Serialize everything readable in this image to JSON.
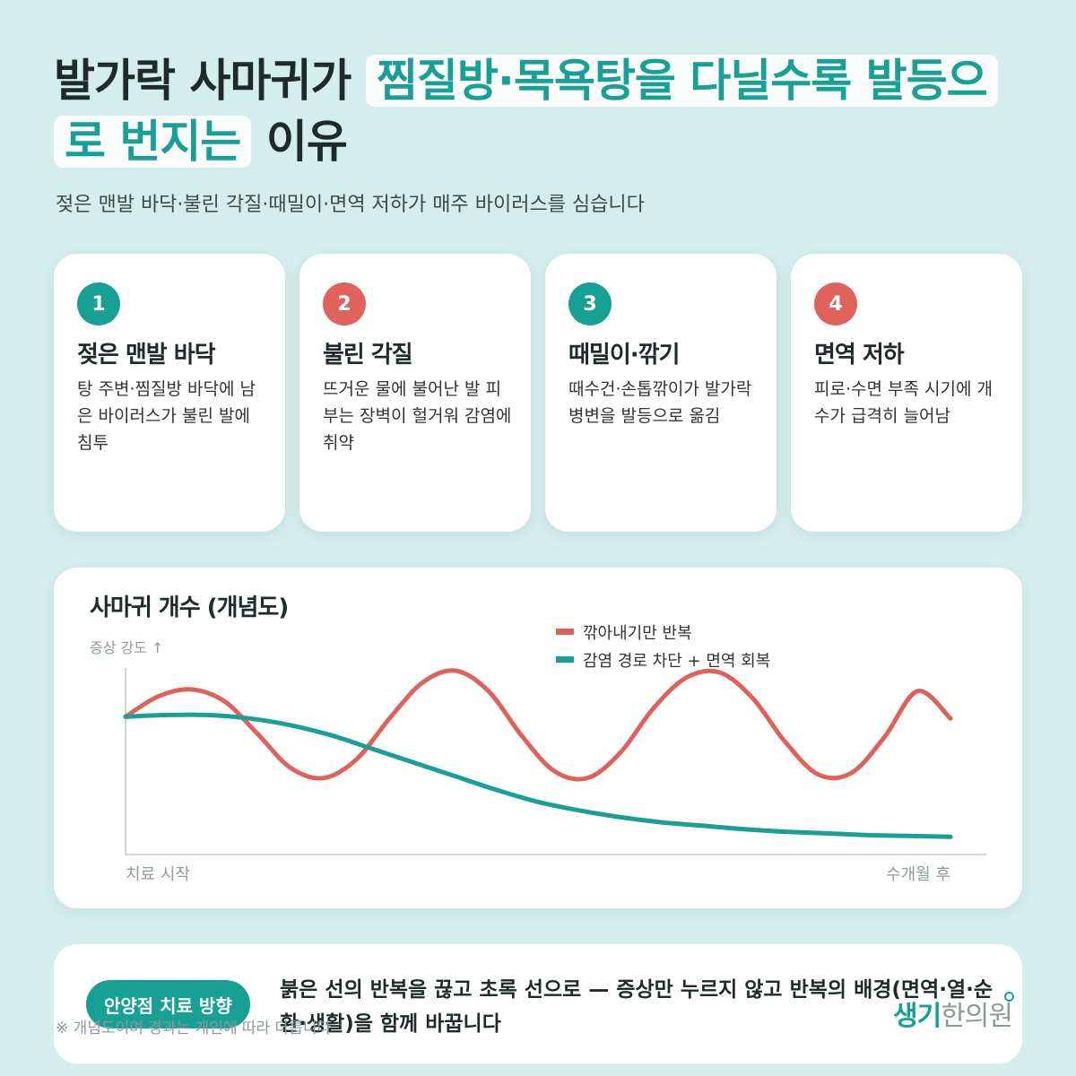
{
  "header": {
    "title_pre": "발가락 사마귀가 ",
    "title_highlight": "찜질방·목욕탕을 다닐수록 발등으로 번지는",
    "title_post": " 이유",
    "subtitle": "젖은 맨발 바닥·불린 각질·때밀이·면역 저하가 매주 바이러스를 심습니다"
  },
  "cards": [
    {
      "num": "1",
      "title": "젖은 맨발 바닥",
      "desc": "탕 주변·찜질방 바닥에 남은 바이러스가 불린 발에 침투",
      "color": "#18a094"
    },
    {
      "num": "2",
      "title": "불린 각질",
      "desc": "뜨거운 물에 불어난 발 피부는 장벽이 헐거워 감염에 취약",
      "color": "#e0625c"
    },
    {
      "num": "3",
      "title": "때밀이·깎기",
      "desc": "때수건·손톱깎이가 발가락 병변을 발등으로 옮김",
      "color": "#18a094"
    },
    {
      "num": "4",
      "title": "면역 저하",
      "desc": "피로·수면 부족 시기에 개수가 급격히 늘어남",
      "color": "#e0625c"
    }
  ],
  "chart_data": {
    "type": "line",
    "title": "사마귀 개수 (개념도)",
    "ylabel": "증상 강도 ↑",
    "x_start_label": "치료 시작",
    "x_end_label": "수개월 후",
    "xlim": [
      0,
      1
    ],
    "ylim": [
      0,
      1
    ],
    "legend_position": "top-right",
    "series": [
      {
        "name": "깎아내기만 반복",
        "color": "#de625c",
        "x": [
          0,
          0.04,
          0.08,
          0.12,
          0.16,
          0.2,
          0.24,
          0.28,
          0.32,
          0.36,
          0.4,
          0.44,
          0.48,
          0.52,
          0.56,
          0.6,
          0.64,
          0.68,
          0.72,
          0.76,
          0.8,
          0.84,
          0.88,
          0.92,
          0.96,
          1.0
        ],
        "values": [
          0.73,
          0.85,
          0.89,
          0.82,
          0.63,
          0.43,
          0.37,
          0.48,
          0.72,
          0.93,
          1.0,
          0.88,
          0.62,
          0.41,
          0.37,
          0.52,
          0.78,
          0.96,
          0.99,
          0.84,
          0.58,
          0.39,
          0.4,
          0.61,
          0.88,
          0.72
        ]
      },
      {
        "name": "감염 경로 차단 + 면역 회복",
        "color": "#18a094",
        "x": [
          0,
          0.05,
          0.1,
          0.15,
          0.2,
          0.25,
          0.3,
          0.35,
          0.4,
          0.45,
          0.5,
          0.55,
          0.6,
          0.65,
          0.7,
          0.75,
          0.8,
          0.85,
          0.9,
          0.95,
          1.0
        ],
        "values": [
          0.73,
          0.74,
          0.74,
          0.72,
          0.68,
          0.62,
          0.54,
          0.46,
          0.38,
          0.3,
          0.23,
          0.18,
          0.14,
          0.11,
          0.09,
          0.07,
          0.055,
          0.045,
          0.035,
          0.03,
          0.025
        ]
      }
    ]
  },
  "bottom": {
    "pill": "안양점 치료 방향",
    "text": "붉은 선의 반복을 끊고 초록 선으로 — 증상만 누르지 않고 반복의 배경(면역·열·순환·생활)을 함께 바꿉니다",
    "footnote": "※ 개념도이며 경과는 개인에 따라 다릅니다"
  },
  "logo": {
    "main": "생기",
    "sub": "한의원"
  }
}
